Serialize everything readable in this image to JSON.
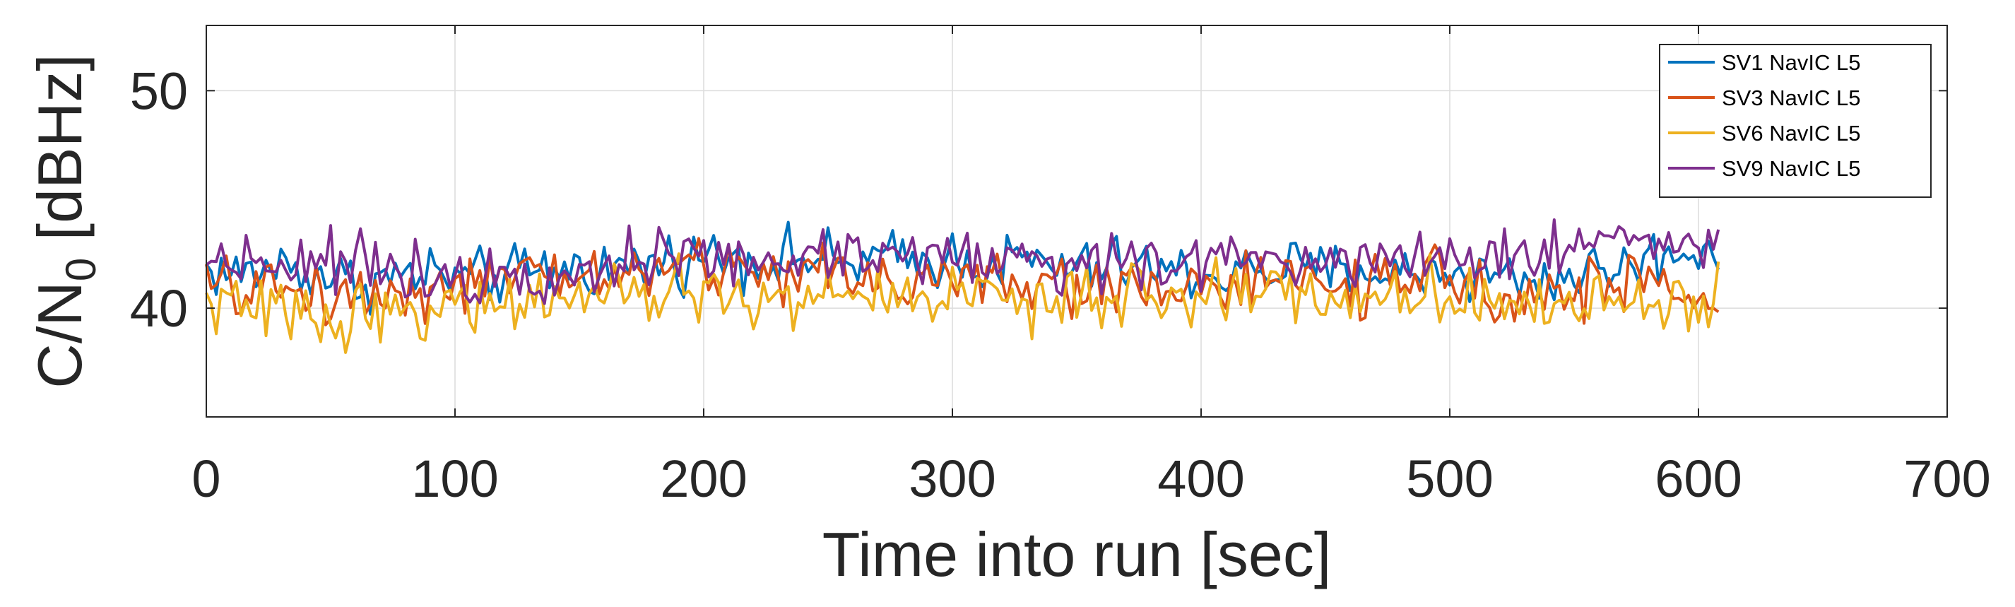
{
  "chart_data": {
    "type": "line",
    "xlabel": "Time into run [sec]",
    "ylabel_main": "C/N",
    "ylabel_sub": "0",
    "ylabel_unit": " [dBHz]",
    "xlim": [
      0,
      700
    ],
    "ylim": [
      35,
      53
    ],
    "xticks": [
      0,
      100,
      200,
      300,
      400,
      500,
      600,
      700
    ],
    "yticks": [
      40,
      50
    ],
    "grid": true,
    "legend_position": "top-right",
    "sample_step_sec": 2,
    "series": [
      {
        "name": "SV1 NavIC L5",
        "color": "#0072BD",
        "x": [
          0,
          15,
          30,
          45,
          60,
          75,
          90,
          105,
          120,
          135,
          150,
          165,
          180,
          195,
          210,
          225,
          240,
          255,
          270,
          285,
          300,
          315,
          330,
          345,
          360,
          375,
          390,
          405,
          420,
          435,
          450,
          465,
          480,
          495,
          510,
          525,
          540,
          555,
          570,
          585,
          598,
          608
        ],
        "y": [
          41.8,
          41.5,
          42.0,
          41.6,
          41.2,
          41.4,
          41.6,
          41.3,
          41.5,
          41.7,
          41.9,
          41.8,
          42.1,
          42.3,
          42.5,
          42.2,
          42.4,
          42.0,
          42.3,
          42.1,
          42.4,
          42.0,
          42.2,
          41.8,
          41.9,
          42.0,
          41.6,
          41.5,
          41.7,
          41.9,
          41.6,
          41.8,
          41.5,
          41.7,
          41.6,
          41.4,
          41.3,
          41.7,
          41.9,
          42.4,
          42.7,
          42.8
        ],
        "noise": 0.95
      },
      {
        "name": "SV3 NavIC L5",
        "color": "#D95319",
        "x": [
          0,
          15,
          30,
          45,
          60,
          75,
          90,
          105,
          120,
          135,
          150,
          165,
          180,
          195,
          210,
          225,
          240,
          255,
          270,
          285,
          300,
          315,
          330,
          345,
          360,
          375,
          390,
          405,
          420,
          435,
          450,
          465,
          480,
          495,
          510,
          525,
          540,
          555,
          570,
          585,
          598,
          608
        ],
        "y": [
          41.0,
          40.8,
          40.9,
          40.7,
          40.6,
          40.8,
          41.0,
          41.1,
          41.2,
          41.4,
          41.5,
          41.6,
          41.7,
          41.9,
          41.8,
          41.7,
          41.6,
          41.6,
          41.5,
          41.3,
          41.4,
          41.2,
          41.0,
          40.9,
          41.1,
          41.2,
          41.0,
          41.0,
          41.1,
          41.2,
          41.0,
          41.1,
          41.0,
          41.3,
          41.1,
          40.8,
          40.6,
          40.9,
          41.1,
          41.0,
          40.7,
          40.3
        ],
        "noise": 1.0
      },
      {
        "name": "SV6 NavIC L5",
        "color": "#EDB120",
        "x": [
          0,
          15,
          30,
          45,
          60,
          75,
          90,
          105,
          120,
          135,
          150,
          165,
          180,
          195,
          210,
          225,
          240,
          255,
          270,
          285,
          300,
          315,
          330,
          345,
          360,
          375,
          390,
          405,
          420,
          435,
          450,
          465,
          480,
          495,
          510,
          525,
          540,
          555,
          570,
          585,
          598,
          608
        ],
        "y": [
          40.3,
          40.0,
          39.8,
          39.6,
          39.7,
          39.9,
          40.0,
          40.1,
          40.3,
          40.4,
          40.5,
          40.3,
          40.6,
          40.8,
          40.6,
          40.2,
          40.4,
          40.7,
          40.5,
          40.6,
          40.8,
          40.6,
          40.4,
          40.1,
          40.3,
          40.6,
          40.5,
          40.7,
          40.9,
          40.8,
          40.6,
          40.5,
          40.4,
          40.8,
          40.7,
          40.3,
          40.0,
          40.2,
          40.5,
          40.3,
          40.2,
          40.6
        ],
        "noise": 1.0
      },
      {
        "name": "SV9 NavIC L5",
        "color": "#7E2F8E",
        "x": [
          0,
          15,
          30,
          45,
          60,
          75,
          90,
          105,
          120,
          135,
          150,
          165,
          180,
          195,
          210,
          225,
          240,
          255,
          270,
          285,
          300,
          315,
          330,
          345,
          360,
          375,
          390,
          405,
          420,
          435,
          450,
          465,
          480,
          495,
          510,
          525,
          540,
          555,
          570,
          585,
          598,
          608
        ],
        "y": [
          42.2,
          42.4,
          42.1,
          42.3,
          42.0,
          41.9,
          41.7,
          41.5,
          41.6,
          41.8,
          41.9,
          42.0,
          42.2,
          42.4,
          42.1,
          42.0,
          42.3,
          42.5,
          42.7,
          42.5,
          42.4,
          42.2,
          42.4,
          42.0,
          42.1,
          42.2,
          42.0,
          42.1,
          42.3,
          42.4,
          42.2,
          42.5,
          42.4,
          42.6,
          42.5,
          42.4,
          42.6,
          43.0,
          43.6,
          43.1,
          43.0,
          42.9
        ],
        "noise": 0.95
      }
    ]
  }
}
